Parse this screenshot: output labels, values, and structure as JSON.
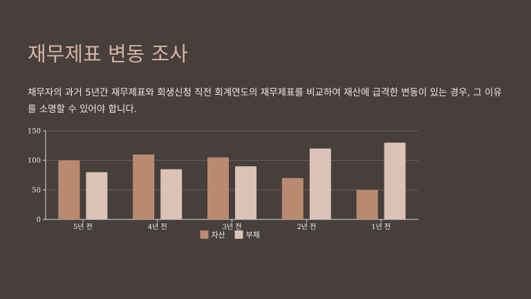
{
  "slide": {
    "title": "재무제표 변동 조사",
    "description": "채무자의 과거 5년간 재무제표와 회생신청 직전 회계연도의 재무제표를 비교하여 재산에 급격한 변동이 있는 경우, 그 이유를 소명할 수 있어야 합니다."
  },
  "chart_data": {
    "type": "bar",
    "categories": [
      "5년 전",
      "4년 전",
      "3년 전",
      "2년 전",
      "1년 전"
    ],
    "series": [
      {
        "name": "자산",
        "values": [
          100,
          110,
          105,
          70,
          50
        ],
        "color": "#b98a70"
      },
      {
        "name": "부채",
        "values": [
          80,
          85,
          90,
          120,
          130
        ],
        "color": "#dcc2b5"
      }
    ],
    "ylim": [
      0,
      150
    ],
    "yticks": [
      0,
      50,
      100,
      150
    ],
    "grid": true,
    "legend": "bottom"
  }
}
